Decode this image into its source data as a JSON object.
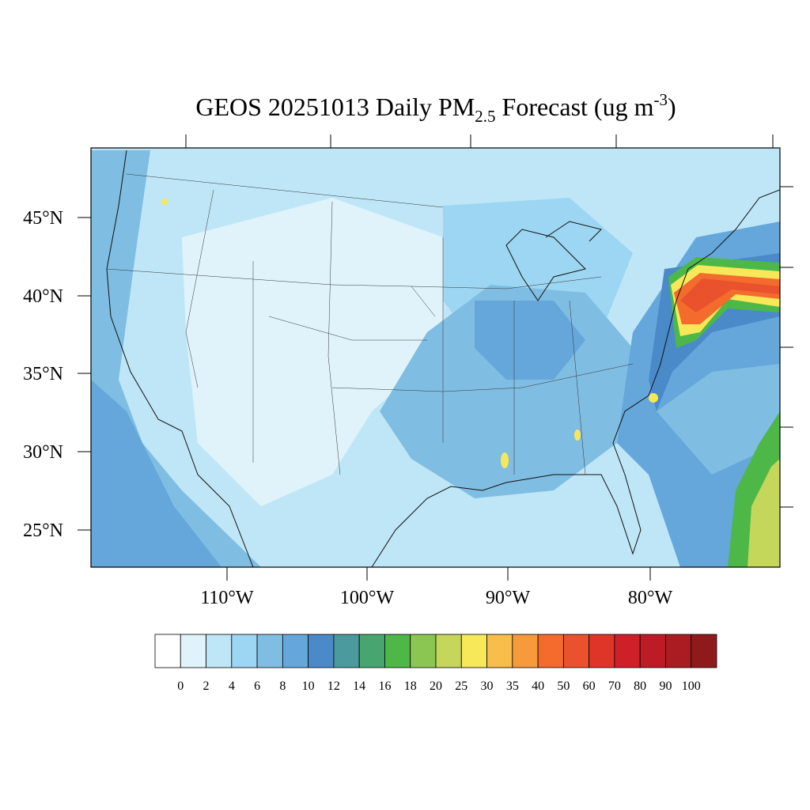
{
  "title": {
    "main": "GEOS 20251013 Daily PM",
    "subscript": "2.5",
    "middle": " Forecast (ug m",
    "superscript": "-3",
    "end": ")"
  },
  "latitude_labels": [
    "45°N",
    "40°N",
    "35°N",
    "30°N",
    "25°N"
  ],
  "longitude_labels": [
    "110°W",
    "100°W",
    "90°W",
    "80°W"
  ],
  "colorbar": {
    "levels": [
      0,
      2,
      4,
      6,
      8,
      10,
      12,
      14,
      16,
      18,
      20,
      25,
      30,
      35,
      40,
      50,
      60,
      70,
      80,
      90,
      100
    ],
    "colors": [
      "#ffffff",
      "#e0f3fb",
      "#bfe6f7",
      "#9dd6f2",
      "#80bde3",
      "#65a7db",
      "#4a8ac9",
      "#4a9a9e",
      "#48a56f",
      "#4db848",
      "#8bc652",
      "#c5d75a",
      "#f7e85a",
      "#f8bd4a",
      "#f79a3b",
      "#f36b2d",
      "#e9522c",
      "#de3528",
      "#cf2029",
      "#bd1c27",
      "#a91c22",
      "#8f1a1c"
    ]
  }
}
